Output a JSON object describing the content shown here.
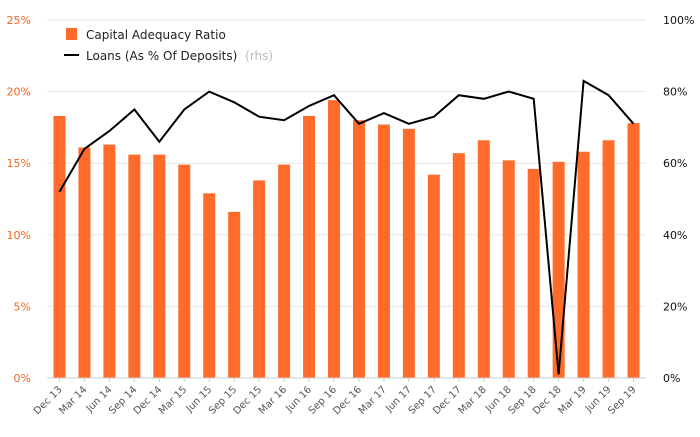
{
  "chart_data": {
    "type": "bar",
    "categories": [
      "Dec 13",
      "Mar 14",
      "Jun 14",
      "Sep 14",
      "Dec 14",
      "Mar 15",
      "Jun 15",
      "Sep 15",
      "Dec 15",
      "Mar 16",
      "Jun 16",
      "Sep 16",
      "Dec 16",
      "Mar 17",
      "Jun 17",
      "Sep 17",
      "Dec 17",
      "Mar 18",
      "Jun 18",
      "Sep 18",
      "Dec 18",
      "Mar 19",
      "Jun 19",
      "Sep 19"
    ],
    "series": [
      {
        "name": "Capital Adequacy Ratio",
        "type": "bar",
        "axis": "left",
        "color": "#ff6b2b",
        "values": [
          18.3,
          16.1,
          16.3,
          15.6,
          15.6,
          14.9,
          12.9,
          11.6,
          13.8,
          14.9,
          18.3,
          19.4,
          18.0,
          17.7,
          17.4,
          14.2,
          15.7,
          16.6,
          15.2,
          14.6,
          15.1,
          15.8,
          16.6,
          17.8
        ]
      },
      {
        "name": "Loans (As % Of Deposits)",
        "legend_suffix": "(rhs)",
        "type": "line",
        "axis": "right",
        "color": "#000000",
        "values": [
          52,
          64,
          69,
          75,
          66,
          75,
          80,
          77,
          73,
          72,
          76,
          79,
          71,
          74,
          71,
          73,
          79,
          78,
          80,
          78,
          1,
          83,
          79,
          71
        ]
      }
    ],
    "y_left": {
      "ticks": [
        "0%",
        "5%",
        "10%",
        "15%",
        "20%",
        "25%"
      ],
      "ylim": [
        0,
        25
      ]
    },
    "y_right": {
      "ticks": [
        "0%",
        "20%",
        "40%",
        "60%",
        "80%",
        "100%"
      ],
      "ylim": [
        0,
        100
      ]
    },
    "legend_position": "top-left",
    "grid": "horizontal",
    "colors": {
      "accent": "#f26522",
      "grid": "#e6e6e6",
      "axis": "#cccccc"
    }
  }
}
